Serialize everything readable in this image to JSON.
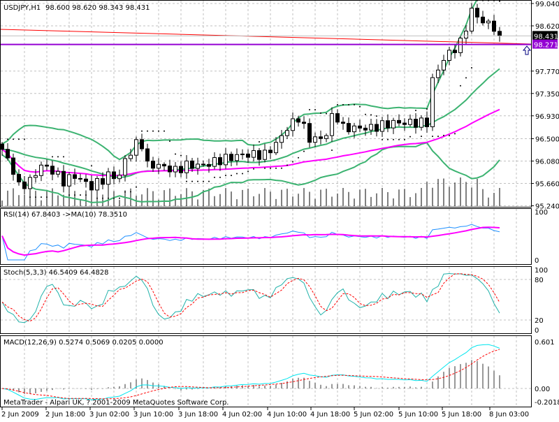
{
  "header": {
    "symbol_tf": "USDJPY,H1",
    "ohlc": "98.600 98.620 98.343 98.431"
  },
  "price_axis": {
    "labels": [
      "99.040",
      "98.620",
      "97.770",
      "97.350",
      "96.930",
      "96.500",
      "96.080",
      "95.660",
      "95.240"
    ],
    "values": [
      99.04,
      98.62,
      97.77,
      97.35,
      96.93,
      96.5,
      96.08,
      95.66,
      95.24
    ],
    "bid_label": "98.431",
    "bid_value": 98.431,
    "hline_label": "98.271",
    "hline_value": 98.271
  },
  "time_axis": [
    "2 Jun 2009",
    "2 Jun 18:00",
    "3 Jun 02:00",
    "3 Jun 10:00",
    "3 Jun 18:00",
    "4 Jun 02:00",
    "4 Jun 10:00",
    "4 Jun 18:00",
    "5 Jun 02:00",
    "5 Jun 10:00",
    "5 Jun 18:00",
    "8 Jun 03:00"
  ],
  "rsi": {
    "label": "RSI(14) 67.8403  ->MA(10) 78.3510",
    "axis": [
      "100",
      "0"
    ]
  },
  "stoch": {
    "label": "Stoch(5,3,3) 46.5409 64.4828",
    "axis": [
      "100",
      "80",
      "20",
      "0"
    ]
  },
  "macd": {
    "label": "MACD(12,26,9) 0.5274 0.5069 0.0205 0.0000",
    "axis": [
      "0.601",
      "0.00",
      "-0.2018"
    ]
  },
  "copyright": "MetaTrader - Alpari UK, ? 2001-2009 MetaQuotes Software Corp.",
  "colors": {
    "bands": "#3cb371",
    "ma": "#ff00ff",
    "rsi": "#1e90ff",
    "stoch": "#20b2aa",
    "signal": "#ff0000",
    "macd": "#00e5ee",
    "hline": "#9400d3",
    "trend": "#ff0000"
  },
  "chart_data": {
    "type": "candlestick",
    "price_keypoints": [
      [
        0,
        96.3
      ],
      [
        2,
        95.9
      ],
      [
        3,
        95.6
      ],
      [
        5,
        95.7
      ],
      [
        7,
        96.0
      ],
      [
        9,
        95.9
      ],
      [
        11,
        95.7
      ],
      [
        13,
        95.8
      ],
      [
        16,
        95.6
      ],
      [
        19,
        95.8
      ],
      [
        21,
        95.8
      ],
      [
        22,
        96.1
      ],
      [
        24,
        96.4
      ],
      [
        25,
        96.4
      ],
      [
        26,
        96.0
      ],
      [
        28,
        96.0
      ],
      [
        31,
        95.9
      ],
      [
        33,
        96.0
      ],
      [
        36,
        96.0
      ],
      [
        39,
        96.1
      ],
      [
        43,
        96.2
      ],
      [
        47,
        96.2
      ],
      [
        49,
        96.4
      ],
      [
        51,
        96.7
      ],
      [
        53,
        96.9
      ],
      [
        55,
        96.5
      ],
      [
        57,
        96.5
      ],
      [
        58,
        96.6
      ],
      [
        59,
        96.9
      ],
      [
        60,
        96.9
      ],
      [
        61,
        96.7
      ],
      [
        66,
        96.7
      ],
      [
        70,
        96.8
      ],
      [
        76,
        96.8
      ],
      [
        77,
        97.6
      ],
      [
        79,
        98.0
      ],
      [
        82,
        98.3
      ],
      [
        84,
        98.9
      ],
      [
        86,
        98.7
      ],
      [
        88,
        98.6
      ],
      [
        89,
        98.431
      ]
    ],
    "ylim": [
      95.24,
      99.04
    ]
  }
}
